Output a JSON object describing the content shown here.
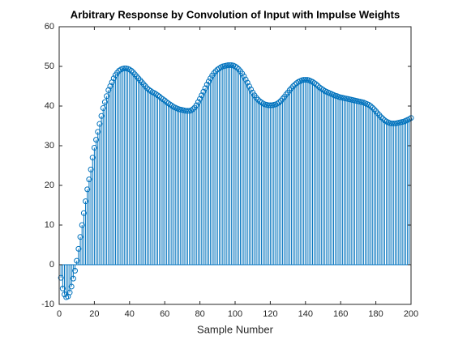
{
  "chart_data": {
    "type": "stem",
    "title": "Arbitrary Response by Convolution of Input with Impulse Weights",
    "x_label": "Sample Number",
    "xlim": [
      0,
      200
    ],
    "xticks": [
      0,
      20,
      40,
      60,
      80,
      100,
      120,
      140,
      160,
      180,
      200
    ],
    "ylim": [
      -10,
      60
    ],
    "yticks": [
      -10,
      0,
      10,
      20,
      30,
      40,
      50,
      60
    ],
    "color": "#0072bd",
    "x": [
      1,
      2,
      3,
      4,
      5,
      6,
      7,
      8,
      9,
      10,
      11,
      12,
      13,
      14,
      15,
      16,
      17,
      18,
      19,
      20,
      21,
      22,
      23,
      24,
      25,
      26,
      27,
      28,
      29,
      30,
      31,
      32,
      33,
      34,
      35,
      36,
      37,
      38,
      39,
      40,
      41,
      42,
      43,
      44,
      45,
      46,
      47,
      48,
      49,
      50,
      51,
      52,
      53,
      54,
      55,
      56,
      57,
      58,
      59,
      60,
      61,
      62,
      63,
      64,
      65,
      66,
      67,
      68,
      69,
      70,
      71,
      72,
      73,
      74,
      75,
      76,
      77,
      78,
      79,
      80,
      81,
      82,
      83,
      84,
      85,
      86,
      87,
      88,
      89,
      90,
      91,
      92,
      93,
      94,
      95,
      96,
      97,
      98,
      99,
      100,
      101,
      102,
      103,
      104,
      105,
      106,
      107,
      108,
      109,
      110,
      111,
      112,
      113,
      114,
      115,
      116,
      117,
      118,
      119,
      120,
      121,
      122,
      123,
      124,
      125,
      126,
      127,
      128,
      129,
      130,
      131,
      132,
      133,
      134,
      135,
      136,
      137,
      138,
      139,
      140,
      141,
      142,
      143,
      144,
      145,
      146,
      147,
      148,
      149,
      150,
      151,
      152,
      153,
      154,
      155,
      156,
      157,
      158,
      159,
      160,
      161,
      162,
      163,
      164,
      165,
      166,
      167,
      168,
      169,
      170,
      171,
      172,
      173,
      174,
      175,
      176,
      177,
      178,
      179,
      180,
      181,
      182,
      183,
      184,
      185,
      186,
      187,
      188,
      189,
      190,
      191,
      192,
      193,
      194,
      195,
      196,
      197,
      198,
      199,
      200
    ],
    "values": [
      -3.3,
      -6,
      -7.5,
      -8.2,
      -8,
      -7,
      -5.5,
      -3.5,
      -1.5,
      1,
      4,
      7,
      10,
      13,
      16,
      19,
      21.5,
      24,
      27,
      29.5,
      31.5,
      33.5,
      35.5,
      37.5,
      39.5,
      41,
      42.5,
      44,
      45,
      46,
      47,
      47.8,
      48.4,
      48.9,
      49.2,
      49.4,
      49.5,
      49.5,
      49.4,
      49.2,
      48.9,
      48.5,
      48,
      47.5,
      47,
      46.5,
      46,
      45.5,
      45,
      44.5,
      44.1,
      43.8,
      43.5,
      43.3,
      43,
      42.7,
      42.4,
      42,
      41.7,
      41.4,
      41,
      40.7,
      40.4,
      40.1,
      39.8,
      39.6,
      39.4,
      39.2,
      39.1,
      39,
      38.9,
      38.8,
      38.8,
      38.8,
      38.9,
      39.2,
      39.6,
      40.2,
      41,
      41.8,
      42.7,
      43.6,
      44.5,
      45.4,
      46.2,
      47,
      47.7,
      48.3,
      48.8,
      49.2,
      49.5,
      49.8,
      50,
      50.1,
      50.2,
      50.3,
      50.3,
      50.3,
      50.2,
      50,
      49.7,
      49.3,
      48.8,
      48.2,
      47.5,
      46.7,
      45.9,
      45,
      44.2,
      43.4,
      42.7,
      42.1,
      41.6,
      41.2,
      40.9,
      40.6,
      40.4,
      40.3,
      40.2,
      40.2,
      40.2,
      40.3,
      40.4,
      40.6,
      40.9,
      41.3,
      41.8,
      42.3,
      42.9,
      43.4,
      44,
      44.5,
      45,
      45.4,
      45.8,
      46.1,
      46.3,
      46.5,
      46.6,
      46.6,
      46.6,
      46.5,
      46.3,
      46.1,
      45.8,
      45.5,
      45.1,
      44.7,
      44.4,
      44.1,
      43.8,
      43.6,
      43.4,
      43.2,
      43,
      42.8,
      42.6,
      42.5,
      42.3,
      42.2,
      42.1,
      42,
      41.9,
      41.8,
      41.7,
      41.6,
      41.5,
      41.4,
      41.3,
      41.2,
      41.1,
      41,
      40.9,
      40.7,
      40.5,
      40.3,
      40,
      39.6,
      39.2,
      38.7,
      38.2,
      37.7,
      37.2,
      36.8,
      36.4,
      36.1,
      35.9,
      35.7,
      35.6,
      35.6,
      35.6,
      35.7,
      35.8,
      35.9,
      36,
      36.1,
      36.3,
      36.5,
      36.7,
      37
    ]
  }
}
